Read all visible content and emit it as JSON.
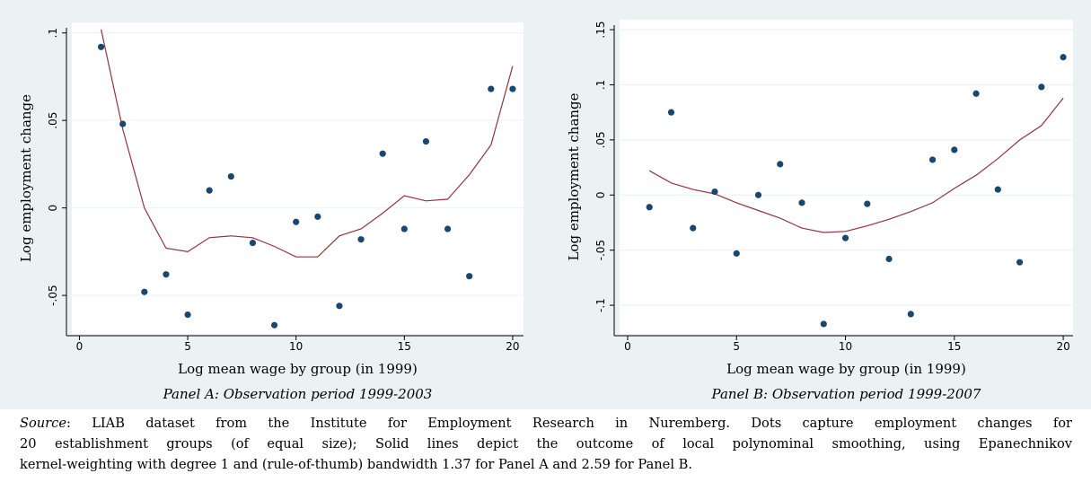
{
  "chart_data": [
    {
      "type": "scatter",
      "caption": "Panel A: Observation period 1999-2003",
      "x_label": "Log mean wage by group (in 1999)",
      "y_label": "Log employment change",
      "x": [
        1,
        2,
        3,
        4,
        5,
        6,
        7,
        8,
        9,
        10,
        11,
        12,
        13,
        14,
        15,
        16,
        17,
        18,
        19,
        20
      ],
      "points": {
        "color": "#1a476f",
        "values": [
          0.092,
          0.048,
          -0.048,
          -0.038,
          -0.061,
          0.01,
          0.018,
          -0.02,
          -0.067,
          -0.008,
          -0.005,
          -0.056,
          -0.018,
          0.031,
          -0.012,
          0.038,
          -0.012,
          -0.039,
          0.068,
          0.068
        ]
      },
      "smooth": {
        "color": "#90353b",
        "values": [
          0.102,
          0.045,
          0.0,
          -0.023,
          -0.025,
          -0.017,
          -0.016,
          -0.017,
          -0.022,
          -0.028,
          -0.028,
          -0.016,
          -0.012,
          -0.003,
          0.007,
          0.004,
          0.005,
          0.019,
          0.036,
          0.081
        ]
      },
      "xlim": [
        -0.35,
        20.5
      ],
      "ylim": [
        -0.072,
        0.106
      ],
      "xticks": [
        0,
        5,
        10,
        15,
        20
      ],
      "yticks": [
        {
          "value": -0.05,
          "label": "-.05"
        },
        0,
        {
          "value": 0.05,
          "label": ".05"
        },
        {
          "value": 0.1,
          "label": ".1"
        }
      ],
      "grid": true
    },
    {
      "type": "scatter",
      "caption": "Panel B: Observation period 1999-2007",
      "x_label": "Log mean wage by group (in 1999)",
      "y_label": "Log employment change",
      "x": [
        1,
        2,
        3,
        4,
        5,
        6,
        7,
        8,
        9,
        10,
        11,
        12,
        13,
        14,
        15,
        16,
        17,
        18,
        19,
        20
      ],
      "points": {
        "color": "#1a476f",
        "values": [
          -0.011,
          0.075,
          -0.03,
          0.003,
          -0.053,
          0.0,
          0.028,
          -0.007,
          -0.117,
          -0.039,
          -0.008,
          -0.058,
          -0.108,
          0.032,
          0.041,
          0.092,
          0.005,
          -0.061,
          0.098,
          0.125
        ]
      },
      "smooth": {
        "color": "#90353b",
        "values": [
          0.022,
          0.011,
          0.005,
          0.001,
          -0.007,
          -0.014,
          -0.021,
          -0.03,
          -0.034,
          -0.033,
          -0.028,
          -0.022,
          -0.015,
          -0.007,
          0.006,
          0.018,
          0.033,
          0.05,
          0.063,
          0.088
        ]
      },
      "xlim": [
        -0.37,
        20.45
      ],
      "ylim": [
        -0.126,
        0.159
      ],
      "xticks": [
        0,
        5,
        10,
        15,
        20
      ],
      "yticks": [
        {
          "value": -0.1,
          "label": "-.1"
        },
        {
          "value": -0.05,
          "label": "-.05"
        },
        0,
        {
          "value": 0.05,
          "label": ".05"
        },
        {
          "value": 0.1,
          "label": ".1"
        },
        {
          "value": 0.15,
          "label": ".15"
        }
      ],
      "grid": true
    }
  ],
  "note": {
    "label": "Source",
    "lines": [
      ": LIAB dataset from the Institute for Employment Research in Nuremberg. Dots capture employment changes for",
      "20 establishment groups (of equal size); Solid lines depict the outcome of local polynominal smoothing, using Epanechnikov",
      "kernel-weighting with degree 1 and (rule-of-thumb) bandwidth 1.37 for Panel A and 2.59 for Panel B."
    ]
  }
}
